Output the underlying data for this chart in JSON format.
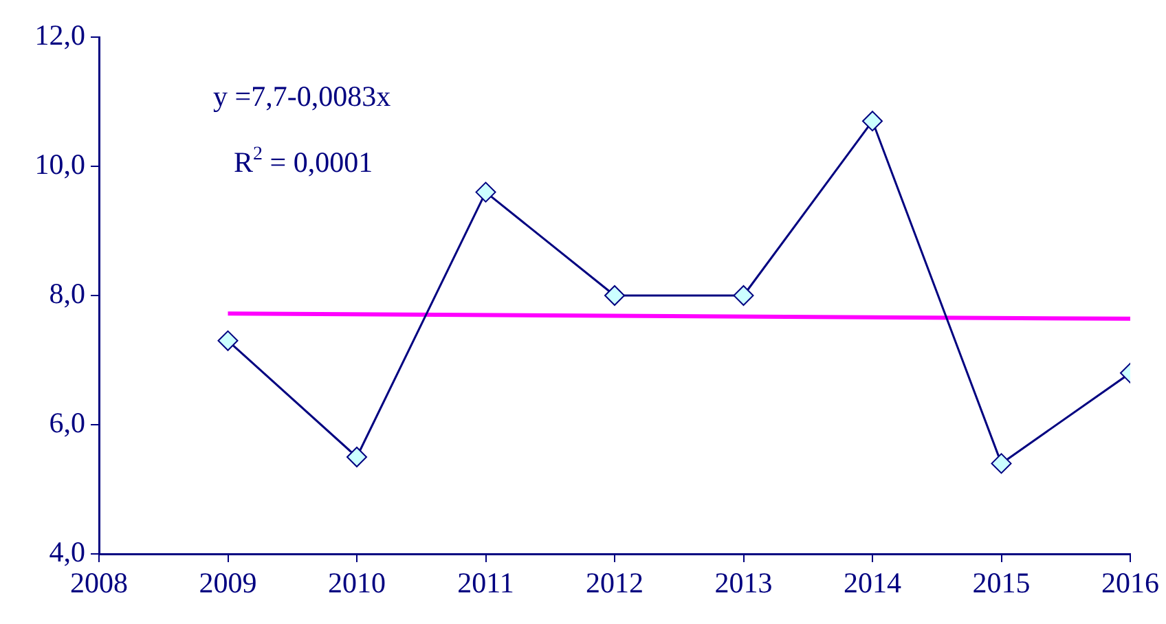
{
  "chart_data": {
    "type": "line",
    "x": [
      2009,
      2010,
      2011,
      2012,
      2013,
      2014,
      2015,
      2016
    ],
    "series": [
      {
        "values": [
          7.3,
          5.5,
          9.6,
          8.0,
          8.0,
          10.7,
          5.4,
          6.8
        ],
        "color": "#000080"
      },
      {
        "type": "line",
        "x": [
          2009,
          2016
        ],
        "values": [
          7.72,
          7.64
        ],
        "color": "#ff00ff",
        "marker": "none"
      }
    ],
    "xlim": [
      2008,
      2016
    ],
    "xticks": [
      2008,
      2009,
      2010,
      2011,
      2012,
      2013,
      2014,
      2015,
      2016
    ],
    "ylim": [
      4,
      12
    ],
    "yticks": [
      {
        "value": 4,
        "label": "4,0"
      },
      {
        "value": 6,
        "label": "6,0"
      },
      {
        "value": 8,
        "label": "8,0"
      },
      {
        "value": 10,
        "label": "10,0"
      },
      {
        "value": 12,
        "label": "12,0"
      }
    ],
    "annotations": [
      "y =7,7-0,0083x",
      "R$^{2}$ = 0,0001"
    ],
    "grid": false,
    "legend": false,
    "marker": "diamond"
  }
}
